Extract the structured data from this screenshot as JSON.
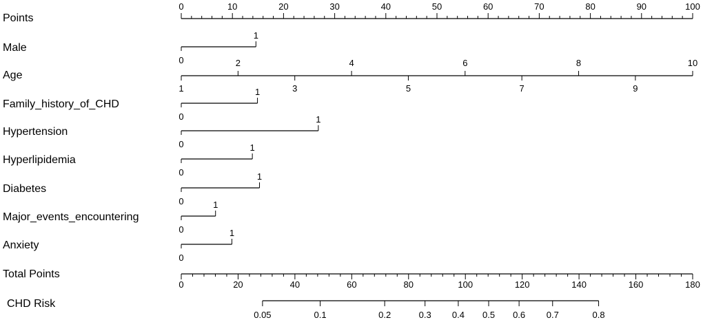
{
  "chart_data": {
    "type": "nomogram",
    "rows": [
      {
        "label": "Points",
        "kind": "points",
        "ticks": [
          "0",
          "10",
          "20",
          "30",
          "40",
          "50",
          "60",
          "70",
          "80",
          "90",
          "100"
        ]
      },
      {
        "label": "Male",
        "kind": "binary",
        "points": 14.6,
        "low": "0",
        "high": "1"
      },
      {
        "label": "Age",
        "kind": "age",
        "top_ticks": [
          {
            "v": "2",
            "points": 11.1
          },
          {
            "v": "4",
            "points": 33.3
          },
          {
            "v": "6",
            "points": 55.5
          },
          {
            "v": "8",
            "points": 77.7
          },
          {
            "v": "10",
            "points": 100
          }
        ],
        "bottom_ticks": [
          {
            "v": "1",
            "points": 0
          },
          {
            "v": "3",
            "points": 22.2
          },
          {
            "v": "5",
            "points": 44.4
          },
          {
            "v": "7",
            "points": 66.6
          },
          {
            "v": "9",
            "points": 88.8
          }
        ]
      },
      {
        "label": "Family_history_of_CHD",
        "kind": "binary",
        "points": 14.9,
        "low": "0",
        "high": "1"
      },
      {
        "label": "Hypertension",
        "kind": "binary",
        "points": 26.8,
        "low": "0",
        "high": "1"
      },
      {
        "label": "Hyperlipidemia",
        "kind": "binary",
        "points": 13.9,
        "low": "0",
        "high": "1"
      },
      {
        "label": "Diabetes",
        "kind": "binary",
        "points": 15.3,
        "low": "0",
        "high": "1"
      },
      {
        "label": "Major_events_encountering",
        "kind": "binary",
        "points": 6.7,
        "low": "0",
        "high": "1"
      },
      {
        "label": "Anxiety",
        "kind": "binary",
        "points": 9.9,
        "low": "0",
        "high": "1"
      },
      {
        "label": "Total Points",
        "kind": "total",
        "ticks": [
          "0",
          "20",
          "40",
          "60",
          "80",
          "100",
          "120",
          "140",
          "160",
          "180"
        ],
        "max": 180
      },
      {
        "label": "CHD Risk",
        "kind": "risk",
        "ticks": [
          {
            "v": "0.05",
            "total": 28.6
          },
          {
            "v": "0.1",
            "total": 48.9
          },
          {
            "v": "0.2",
            "total": 71.6
          },
          {
            "v": "0.3",
            "total": 85.8
          },
          {
            "v": "0.4",
            "total": 97.5
          },
          {
            "v": "0.5",
            "total": 108.2
          },
          {
            "v": "0.6",
            "total": 118.9
          },
          {
            "v": "0.7",
            "total": 130.7
          },
          {
            "v": "0.8",
            "total": 146.9
          }
        ]
      }
    ],
    "xlim_points": [
      0,
      100
    ],
    "xlim_total": [
      0,
      180
    ]
  }
}
